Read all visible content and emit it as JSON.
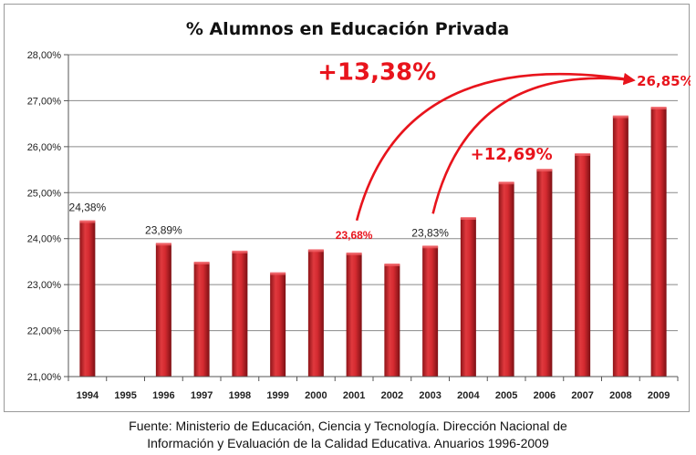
{
  "chart_data": {
    "type": "bar",
    "title": "% Alumnos en Educación Privada",
    "categories": [
      "1994",
      "1995",
      "1996",
      "1997",
      "1998",
      "1999",
      "2000",
      "2001",
      "2002",
      "2003",
      "2004",
      "2005",
      "2006",
      "2007",
      "2008",
      "2009"
    ],
    "values": [
      24.38,
      null,
      23.89,
      23.48,
      23.72,
      23.25,
      23.75,
      23.68,
      23.44,
      23.83,
      24.45,
      25.22,
      25.5,
      25.84,
      26.66,
      26.85
    ],
    "ylim": [
      21,
      28
    ],
    "y_ticks": [
      "21,00%",
      "22,00%",
      "23,00%",
      "24,00%",
      "25,00%",
      "26,00%",
      "27,00%",
      "28,00%"
    ],
    "grid": true,
    "bar_color": "#c0252b",
    "data_labels": [
      {
        "category": "1994",
        "text": "24,38%",
        "color": "#222222"
      },
      {
        "category": "1996",
        "text": "23,89%",
        "color": "#222222"
      },
      {
        "category": "2001",
        "text": "23,68%",
        "color": "#e8141c"
      },
      {
        "category": "2003",
        "text": "23,83%",
        "color": "#222222"
      }
    ],
    "annotations": [
      {
        "text": "+13,38%",
        "from": "2001",
        "to": "2009",
        "color": "#e8141c"
      },
      {
        "text": "+12,69%",
        "from": "2003",
        "to": "2009",
        "color": "#e8141c"
      },
      {
        "text": "26,85%",
        "category": "2009",
        "color": "#e8141c"
      }
    ]
  },
  "source": {
    "line1": "Fuente: Ministerio de Educación, Ciencia y Tecnología. Dirección Nacional de",
    "line2": "Información y Evaluación de la Calidad Educativa. Anuarios 1996-2009"
  }
}
